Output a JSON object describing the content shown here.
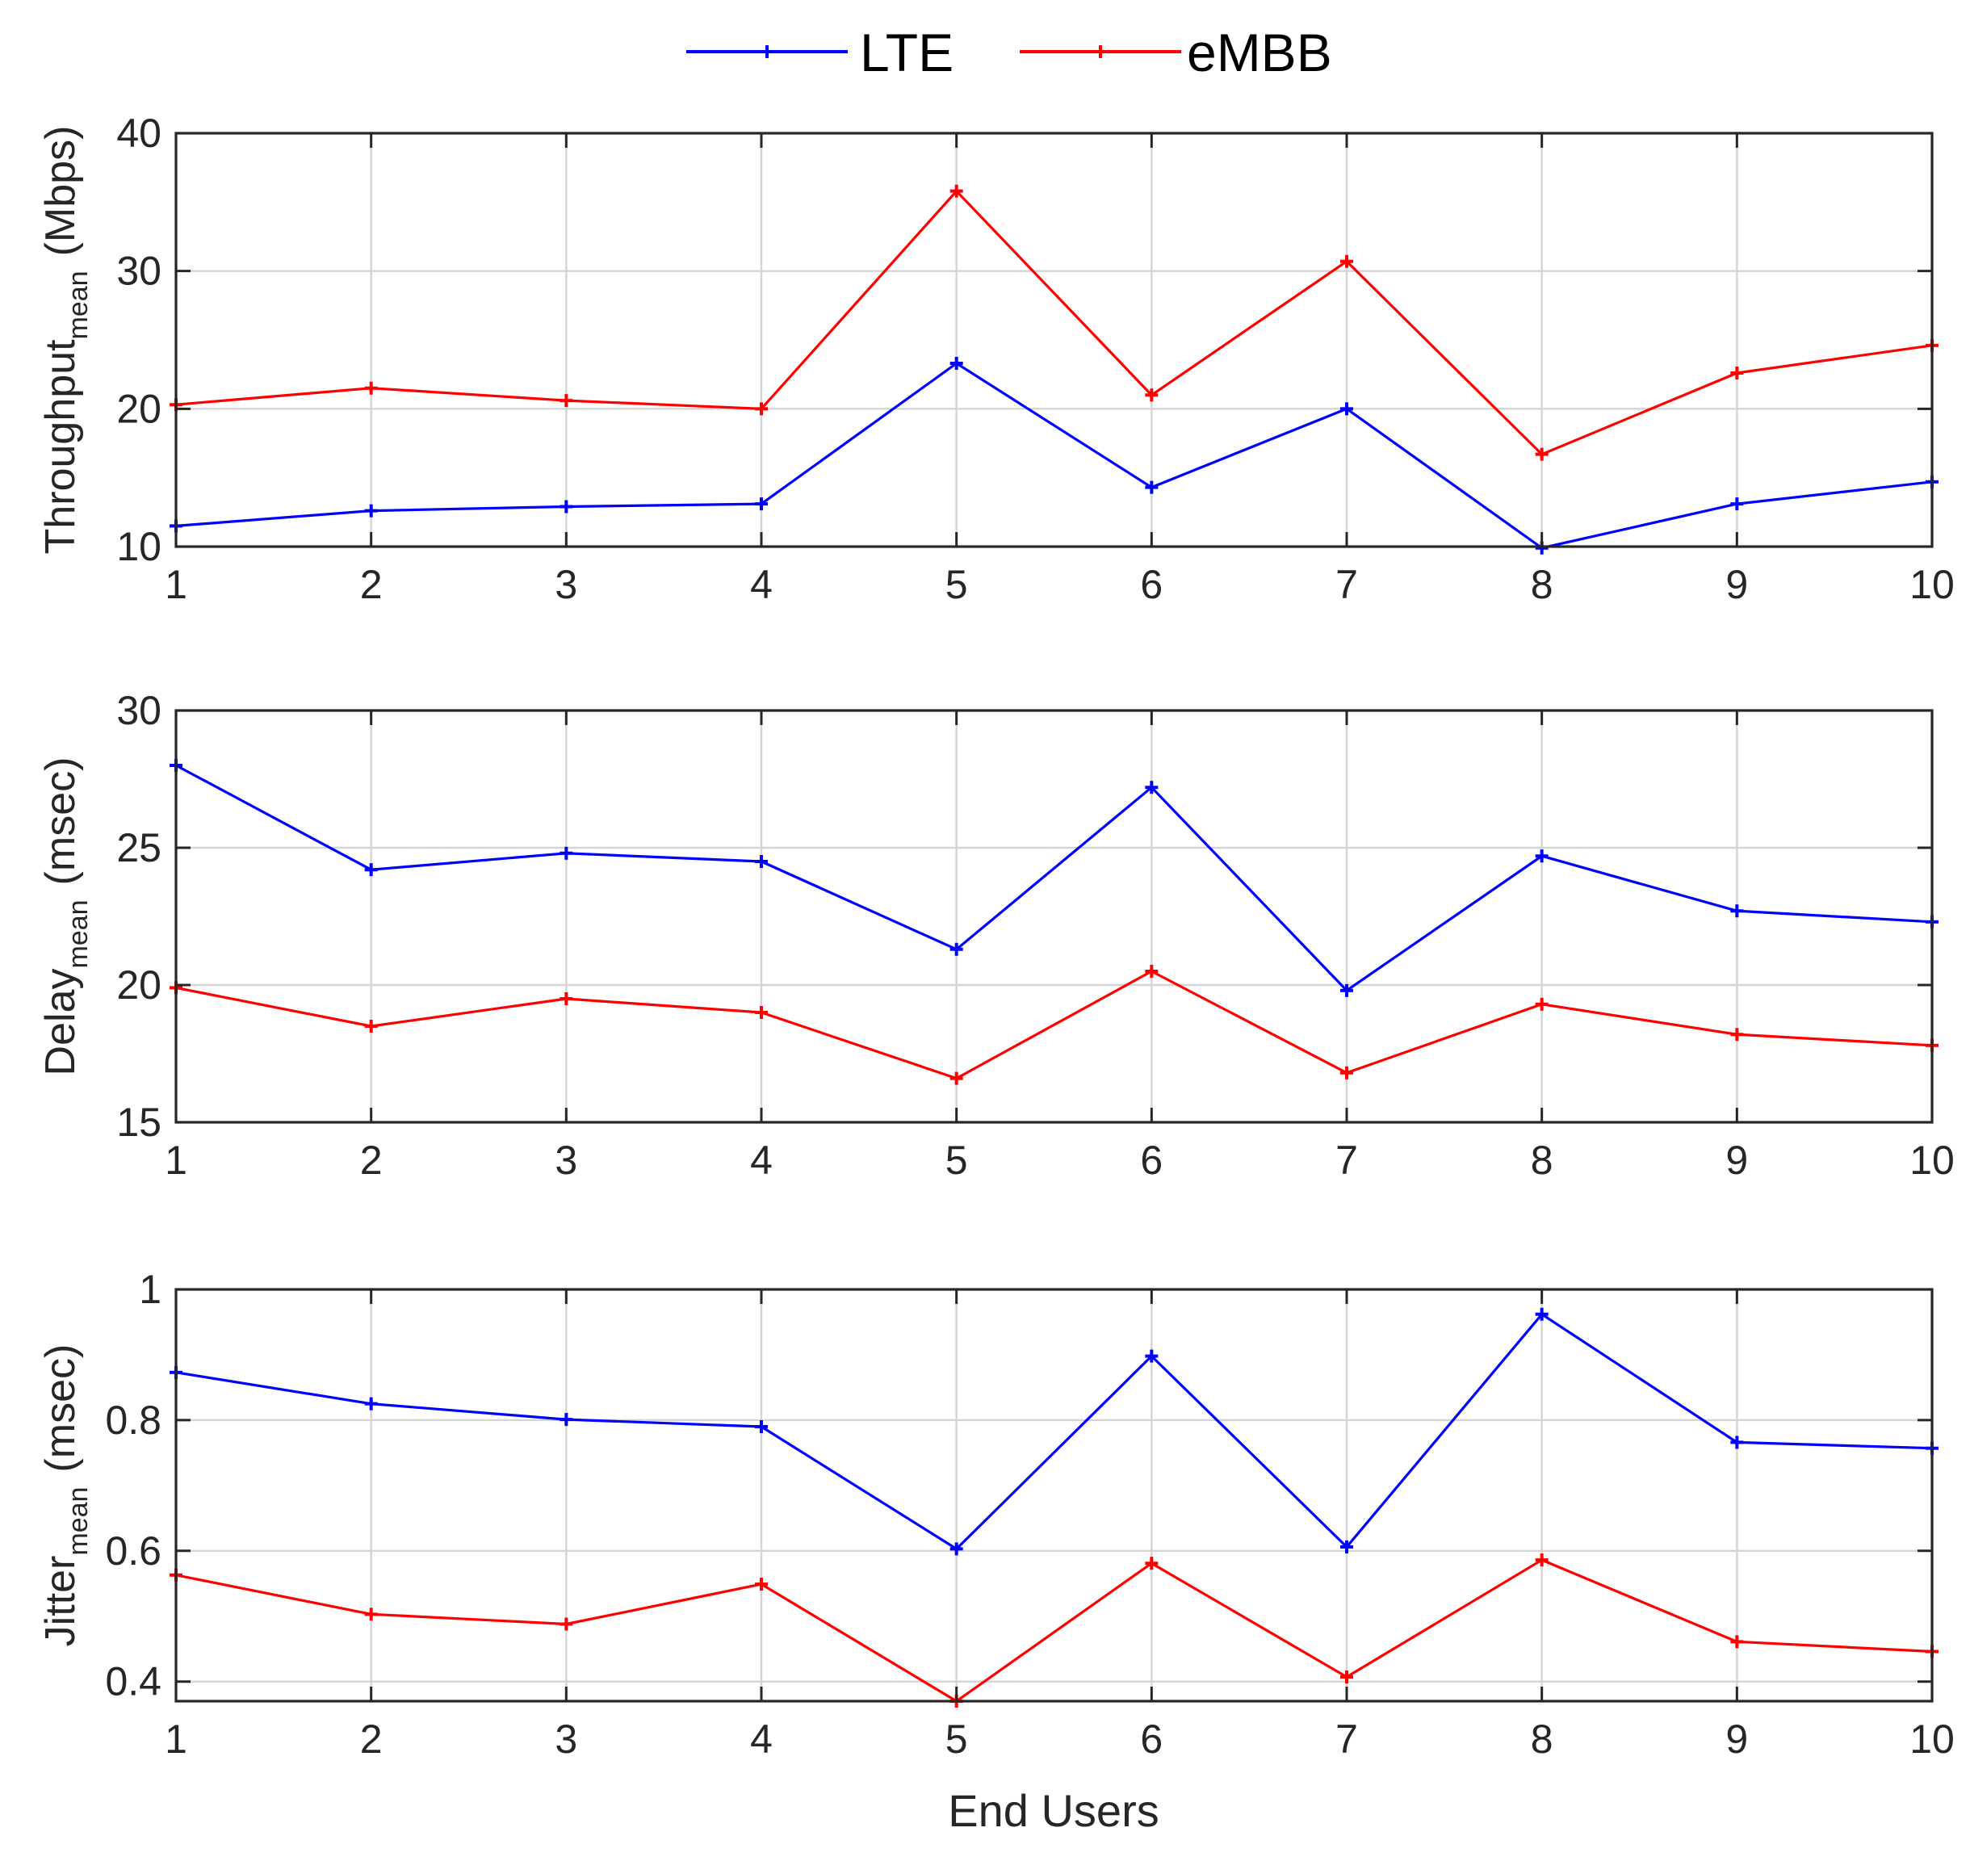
{
  "legend": {
    "position": "top-center",
    "items": [
      {
        "label": "LTE",
        "color": "#0000ff"
      },
      {
        "label": "eMBB",
        "color": "#ff0000"
      }
    ]
  },
  "xlabel": "End Users",
  "chart_data": [
    {
      "type": "line",
      "title": "",
      "ylabel": {
        "main": "Throughput",
        "sub": "mean",
        "unit": "(Mbps)"
      },
      "x": [
        1,
        2,
        3,
        4,
        5,
        6,
        7,
        8,
        9,
        10
      ],
      "xlim": [
        1,
        10
      ],
      "ylim": [
        10,
        40
      ],
      "yticks": [
        10,
        20,
        30,
        40
      ],
      "grid": true,
      "series": [
        {
          "name": "LTE",
          "color": "#0000ff",
          "values": [
            11.5,
            12.6,
            12.9,
            13.1,
            23.3,
            14.3,
            20.0,
            9.9,
            13.1,
            14.7
          ]
        },
        {
          "name": "eMBB",
          "color": "#ff0000",
          "values": [
            20.3,
            21.5,
            20.6,
            20.0,
            35.8,
            21.0,
            30.7,
            16.7,
            22.6,
            24.6
          ]
        }
      ]
    },
    {
      "type": "line",
      "title": "",
      "ylabel": {
        "main": "Delay",
        "sub": "mean",
        "unit": "(msec)"
      },
      "x": [
        1,
        2,
        3,
        4,
        5,
        6,
        7,
        8,
        9,
        10
      ],
      "xlim": [
        1,
        10
      ],
      "ylim": [
        15,
        30
      ],
      "yticks": [
        15,
        20,
        25,
        30
      ],
      "grid": true,
      "series": [
        {
          "name": "LTE",
          "color": "#0000ff",
          "values": [
            28.0,
            24.2,
            24.8,
            24.5,
            21.3,
            27.2,
            19.8,
            24.7,
            22.7,
            22.3
          ]
        },
        {
          "name": "eMBB",
          "color": "#ff0000",
          "values": [
            19.9,
            18.5,
            19.5,
            19.0,
            16.6,
            20.5,
            16.8,
            19.3,
            18.2,
            17.8
          ]
        }
      ]
    },
    {
      "type": "line",
      "title": "",
      "ylabel": {
        "main": "Jitter",
        "sub": "mean",
        "unit": "(msec)"
      },
      "x": [
        1,
        2,
        3,
        4,
        5,
        6,
        7,
        8,
        9,
        10
      ],
      "xlim": [
        1,
        10
      ],
      "ylim": [
        0.37,
        1.0
      ],
      "yticks": [
        0.4,
        0.6,
        0.8,
        1
      ],
      "ytick_labels": [
        "0.4",
        "0.6",
        "0.8",
        "1"
      ],
      "grid": true,
      "series": [
        {
          "name": "LTE",
          "color": "#0000ff",
          "values": [
            0.873,
            0.825,
            0.801,
            0.79,
            0.603,
            0.898,
            0.606,
            0.962,
            0.766,
            0.757
          ]
        },
        {
          "name": "eMBB",
          "color": "#ff0000",
          "values": [
            0.563,
            0.503,
            0.488,
            0.549,
            0.37,
            0.581,
            0.407,
            0.586,
            0.461,
            0.446
          ]
        }
      ]
    }
  ]
}
